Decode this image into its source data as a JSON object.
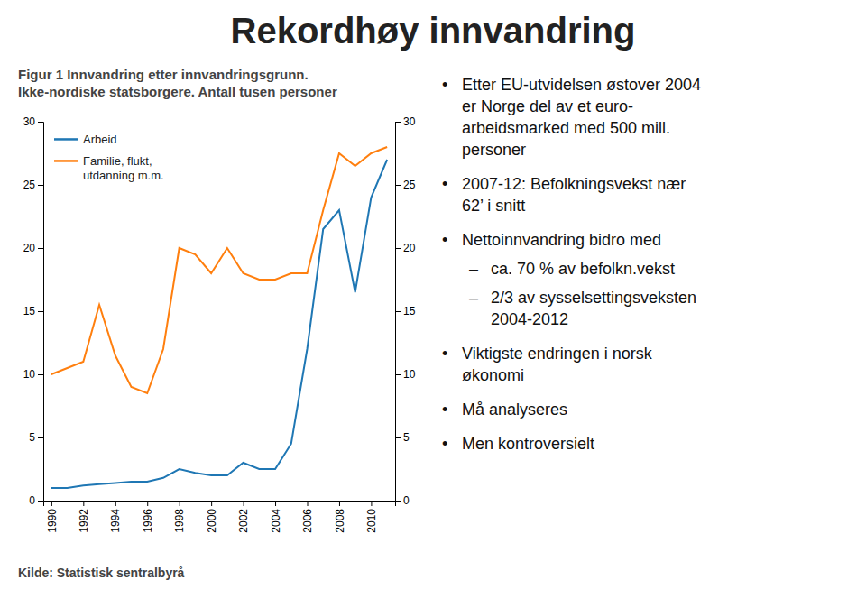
{
  "chart_data": {
    "type": "line",
    "title": "Rekordhøy innvandring",
    "subtitle": [
      "Figur 1 Innvandring etter innvandringsgrunn.",
      "Ikke-nordiske statsborgere. Antall tusen personer"
    ],
    "source": "Kilde: Statistisk sentralbyrå",
    "x": [
      1990,
      1991,
      1992,
      1993,
      1994,
      1995,
      1996,
      1997,
      1998,
      1999,
      2000,
      2001,
      2002,
      2003,
      2004,
      2005,
      2006,
      2007,
      2008,
      2009,
      2010,
      2011
    ],
    "series": [
      {
        "name": "Arbeid",
        "values": [
          1.0,
          1.0,
          1.2,
          1.3,
          1.4,
          1.5,
          1.5,
          1.8,
          2.5,
          2.2,
          2.0,
          2.0,
          3.0,
          2.5,
          2.5,
          4.5,
          12.0,
          21.5,
          23.0,
          16.5,
          24.0,
          27.0
        ]
      },
      {
        "name": "Familie, flukt,\nutdanning m.m.",
        "values": [
          10.0,
          10.5,
          11.0,
          15.5,
          11.5,
          9.0,
          8.5,
          12.0,
          20.0,
          19.5,
          18.0,
          20.0,
          18.0,
          17.5,
          17.5,
          18.0,
          18.0,
          23.0,
          27.5,
          26.5,
          27.5,
          28.0
        ]
      }
    ],
    "xlim": [
      1989.5,
      2011.5
    ],
    "xticks": [
      1990,
      1992,
      1994,
      1996,
      1998,
      2000,
      2002,
      2004,
      2006,
      2008,
      2010
    ],
    "ylim": [
      0,
      30
    ],
    "yticks": [
      0,
      5,
      10,
      15,
      20,
      25,
      30
    ],
    "y2lim": [
      0,
      30
    ],
    "y2ticks": [
      0,
      5,
      10,
      15,
      20,
      25,
      30
    ],
    "grid": false,
    "legend": "upper left",
    "annotations": [
      "• Etter EU-utvidelsen østover 2004\ner Norge del av et euro-\narbeidsmarked med 500 mill.\npersoner",
      "• 2007-12: Befolkningsvekst nær\n62’ i snitt",
      "• Netto​innvandring bidro med",
      "– ca. 70 % av befolkn.vekst",
      "– 2/3 av sysselsettingsveksten\n2004-2012",
      "• Viktigste endringen i norsk\nøkonomi",
      "• Må analyseres",
      "• Men kontroversielt"
    ]
  }
}
